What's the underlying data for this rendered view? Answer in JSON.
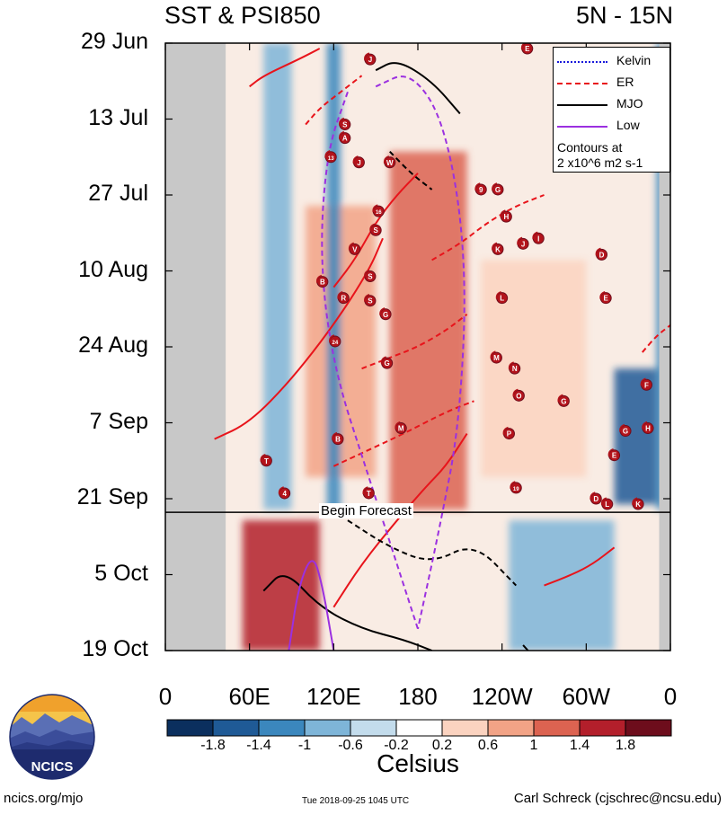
{
  "chart_data": {
    "type": "heatmap",
    "title": "SST & PSI850",
    "subtitle": "5N - 15N",
    "y_tick_labels": [
      "29 Jun",
      "13 Jul",
      "27 Jul",
      "10 Aug",
      "24 Aug",
      "7 Sep",
      "21 Sep",
      "5 Oct",
      "19 Oct"
    ],
    "x_tick_labels": [
      "0",
      "60E",
      "120E",
      "180",
      "120W",
      "60W",
      "0"
    ],
    "x_tick_lon": [
      0,
      60,
      120,
      180,
      240,
      300,
      360
    ],
    "y_tick_days": [
      0,
      14,
      28,
      42,
      56,
      70,
      84,
      98,
      112
    ],
    "forecast_day": 86.5,
    "forecast_label": "Begin Forecast",
    "colorbar": {
      "ticks": [
        "-1.8",
        "-1.4",
        "-1",
        "-0.6",
        "-0.2",
        "0.2",
        "0.6",
        "1",
        "1.4",
        "1.8"
      ],
      "label": "Celsius",
      "colors": [
        "#0b2f5e",
        "#1f5a96",
        "#3b87bd",
        "#7eb5d8",
        "#c3dcec",
        "#ffffff",
        "#fbd3c0",
        "#f2a386",
        "#dc6351",
        "#b31f2b",
        "#6d0d1c"
      ]
    },
    "legend": {
      "items": [
        {
          "name": "Kelvin",
          "color": "#1a1adb"
        },
        {
          "name": "ER",
          "color": "#e8141b"
        },
        {
          "name": "MJO",
          "color": "#000000"
        },
        {
          "name": "Low",
          "color": "#9b30e0"
        }
      ],
      "note_line1": "Contours at",
      "note_line2": "2 x10^6 m2 s-1",
      "position": "top-right"
    },
    "land_masks": [
      {
        "lon_start": 0,
        "lon_end": 43,
        "color": "#c8c8c8"
      },
      {
        "lon_start": 352,
        "lon_end": 360,
        "color": "#c8c8c8"
      }
    ],
    "sst_anomaly_regions": [
      {
        "lon": [
          160,
          215
        ],
        "days": [
          20,
          86
        ],
        "value": 1.2
      },
      {
        "lon": [
          100,
          150
        ],
        "days": [
          30,
          80
        ],
        "value": 0.8
      },
      {
        "lon": [
          55,
          110
        ],
        "days": [
          88,
          112
        ],
        "value": 1.5
      },
      {
        "lon": [
          70,
          90
        ],
        "days": [
          0,
          86
        ],
        "value": -0.8
      },
      {
        "lon": [
          115,
          125
        ],
        "days": [
          0,
          86
        ],
        "value": -1.0
      },
      {
        "lon": [
          245,
          320
        ],
        "days": [
          88,
          112
        ],
        "value": -0.6
      },
      {
        "lon": [
          320,
          350
        ],
        "days": [
          60,
          85
        ],
        "value": -1.4
      },
      {
        "lon": [
          225,
          300
        ],
        "days": [
          40,
          80
        ],
        "value": 0.6
      },
      {
        "lon": [
          350,
          358
        ],
        "days": [
          0,
          86
        ],
        "value": -1.2
      }
    ],
    "contours": [
      {
        "series": "ER",
        "style": "solid",
        "lon": [
          60,
          70,
          95,
          110
        ],
        "days": [
          8,
          6,
          3,
          1
        ]
      },
      {
        "series": "ER",
        "style": "solid",
        "lon": [
          35,
          60,
          90,
          120,
          145,
          155
        ],
        "days": [
          73,
          70,
          62,
          52,
          42,
          36
        ]
      },
      {
        "series": "ER",
        "style": "solid",
        "lon": [
          120,
          140,
          165,
          185,
          200,
          215
        ],
        "days": [
          104,
          96,
          88,
          82,
          78,
          72
        ]
      },
      {
        "series": "ER",
        "style": "solid",
        "lon": [
          120,
          135,
          150,
          165,
          180
        ],
        "days": [
          45,
          40,
          33,
          28,
          24
        ]
      },
      {
        "series": "ER",
        "style": "dashed",
        "lon": [
          100,
          110,
          125,
          140
        ],
        "days": [
          15,
          12,
          9,
          6
        ]
      },
      {
        "series": "ER",
        "style": "dashed",
        "lon": [
          120,
          145,
          170,
          200,
          220
        ],
        "days": [
          78,
          75,
          72,
          68,
          66
        ]
      },
      {
        "series": "ER",
        "style": "dashed",
        "lon": [
          190,
          210,
          230,
          250,
          270
        ],
        "days": [
          40,
          37,
          33,
          30,
          28
        ]
      },
      {
        "series": "ER",
        "style": "dashed",
        "lon": [
          140,
          160,
          180,
          200,
          215
        ],
        "days": [
          60,
          58,
          56,
          53,
          50
        ]
      },
      {
        "series": "ER",
        "style": "solid",
        "lon": [
          270,
          290,
          305,
          320
        ],
        "days": [
          100,
          98,
          96,
          93
        ]
      },
      {
        "series": "ER",
        "style": "dashed",
        "lon": [
          340,
          350,
          360
        ],
        "days": [
          57,
          54,
          52
        ]
      },
      {
        "series": "MJO",
        "style": "solid",
        "lon": [
          150,
          165,
          190,
          210
        ],
        "days": [
          5,
          3,
          7,
          13
        ]
      },
      {
        "series": "MJO",
        "style": "solid",
        "lon": [
          70,
          85,
          110,
          140,
          170,
          190
        ],
        "days": [
          101,
          97,
          104,
          108,
          110,
          112
        ]
      },
      {
        "series": "MJO",
        "style": "dashed",
        "lon": [
          130,
          160,
          190,
          220,
          250
        ],
        "days": [
          88,
          93,
          96,
          92,
          100
        ]
      },
      {
        "series": "MJO",
        "style": "dashed",
        "lon": [
          160,
          175,
          190
        ],
        "days": [
          20,
          24,
          27
        ]
      },
      {
        "series": "MJO",
        "style": "solid",
        "lon": [
          255,
          262
        ],
        "days": [
          111,
          113
        ]
      },
      {
        "series": "Low",
        "style": "dashed",
        "lon": [
          130,
          115,
          110,
          120,
          145,
          165,
          180
        ],
        "days": [
          9,
          20,
          40,
          60,
          80,
          96,
          108
        ]
      },
      {
        "series": "Low",
        "style": "dashed",
        "lon": [
          150,
          175,
          200,
          215,
          210,
          195,
          180
        ],
        "days": [
          8,
          5,
          15,
          40,
          70,
          90,
          108
        ]
      },
      {
        "series": "Low",
        "style": "solid",
        "lon": [
          88,
          95,
          105,
          112,
          120
        ],
        "days": [
          112,
          100,
          94,
          100,
          112
        ]
      }
    ],
    "storm_markers": [
      {
        "label": "E",
        "lon": 258,
        "days": 1
      },
      {
        "label": "J",
        "lon": 146,
        "days": 3
      },
      {
        "label": "S",
        "lon": 128,
        "days": 15
      },
      {
        "label": "A",
        "lon": 128,
        "days": 17.5
      },
      {
        "label": "13",
        "lon": 118,
        "days": 21
      },
      {
        "label": "J",
        "lon": 138,
        "days": 22
      },
      {
        "label": "W",
        "lon": 160,
        "days": 22
      },
      {
        "label": "9",
        "lon": 225,
        "days": 27
      },
      {
        "label": "G",
        "lon": 237,
        "days": 27
      },
      {
        "label": "16",
        "lon": 152,
        "days": 31
      },
      {
        "label": "H",
        "lon": 243,
        "days": 32
      },
      {
        "label": "S",
        "lon": 150,
        "days": 34.5
      },
      {
        "label": "I",
        "lon": 266,
        "days": 36
      },
      {
        "label": "J",
        "lon": 255,
        "days": 37
      },
      {
        "label": "K",
        "lon": 237,
        "days": 38
      },
      {
        "label": "V",
        "lon": 135,
        "days": 38
      },
      {
        "label": "D",
        "lon": 311,
        "days": 39
      },
      {
        "label": "B",
        "lon": 112,
        "days": 44
      },
      {
        "label": "S",
        "lon": 146,
        "days": 43
      },
      {
        "label": "R",
        "lon": 127,
        "days": 47
      },
      {
        "label": "S",
        "lon": 146,
        "days": 47.5
      },
      {
        "label": "L",
        "lon": 240,
        "days": 47
      },
      {
        "label": "E",
        "lon": 314,
        "days": 47
      },
      {
        "label": "G",
        "lon": 157,
        "days": 50
      },
      {
        "label": "24",
        "lon": 121,
        "days": 55
      },
      {
        "label": "M",
        "lon": 236,
        "days": 58
      },
      {
        "label": "G",
        "lon": 158,
        "days": 59
      },
      {
        "label": "N",
        "lon": 249,
        "days": 60
      },
      {
        "label": "F",
        "lon": 343,
        "days": 63
      },
      {
        "label": "O",
        "lon": 252,
        "days": 65
      },
      {
        "label": "G",
        "lon": 284,
        "days": 66
      },
      {
        "label": "M",
        "lon": 168,
        "days": 71
      },
      {
        "label": "P",
        "lon": 245,
        "days": 72
      },
      {
        "label": "H",
        "lon": 344,
        "days": 71
      },
      {
        "label": "G",
        "lon": 328,
        "days": 71.5
      },
      {
        "label": "B",
        "lon": 123,
        "days": 73
      },
      {
        "label": "E",
        "lon": 320,
        "days": 76
      },
      {
        "label": "T",
        "lon": 72,
        "days": 77
      },
      {
        "label": "19",
        "lon": 250,
        "days": 82
      },
      {
        "label": "4",
        "lon": 85,
        "days": 83
      },
      {
        "label": "T",
        "lon": 145,
        "days": 83
      },
      {
        "label": "D",
        "lon": 307,
        "days": 84
      },
      {
        "label": "L",
        "lon": 315,
        "days": 85
      },
      {
        "label": "K",
        "lon": 337,
        "days": 85
      }
    ],
    "xlim": [
      0,
      360
    ],
    "ylim": [
      0,
      112
    ]
  },
  "logo": {
    "text": "NCICS"
  },
  "footer": {
    "left": "ncics.org/mjo",
    "timestamp": "Tue 2018-09-25 1045 UTC",
    "author": "Carl Schreck (cjschrec@ncsu.edu)"
  }
}
